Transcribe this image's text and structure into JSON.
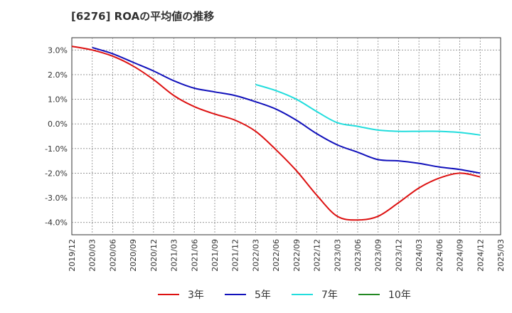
{
  "chart_data": {
    "type": "line",
    "title": "[6276]  ROAの平均値の推移",
    "xlabel": "",
    "ylabel": "",
    "ylim": [
      -4.5,
      3.5
    ],
    "yticks": [
      3.0,
      2.0,
      1.0,
      0.0,
      -1.0,
      -2.0,
      -3.0,
      -4.0
    ],
    "ytick_labels": [
      "3.0%",
      "2.0%",
      "1.0%",
      "0.0%",
      "-1.0%",
      "-2.0%",
      "-3.0%",
      "-4.0%"
    ],
    "x_categories": [
      "2019/12",
      "2020/03",
      "2020/06",
      "2020/09",
      "2020/12",
      "2021/03",
      "2021/06",
      "2021/09",
      "2021/12",
      "2022/03",
      "2022/06",
      "2022/09",
      "2022/12",
      "2023/03",
      "2023/06",
      "2023/09",
      "2023/12",
      "2024/03",
      "2024/06",
      "2024/09",
      "2024/12",
      "2025/03"
    ],
    "grid": true,
    "legend_position": "bottom",
    "series": [
      {
        "name": "3年",
        "color": "#dd1111",
        "start_index": 0,
        "values": [
          3.15,
          3.0,
          2.75,
          2.35,
          1.8,
          1.15,
          0.7,
          0.4,
          0.15,
          -0.3,
          -1.05,
          -1.9,
          -2.9,
          -3.75,
          -3.9,
          -3.75,
          -3.2,
          -2.6,
          -2.2,
          -2.0,
          -2.15
        ]
      },
      {
        "name": "5年",
        "color": "#1111bb",
        "start_index": 1,
        "values": [
          3.1,
          2.85,
          2.5,
          2.15,
          1.75,
          1.45,
          1.3,
          1.15,
          0.9,
          0.6,
          0.15,
          -0.4,
          -0.85,
          -1.15,
          -1.45,
          -1.5,
          -1.6,
          -1.75,
          -1.85,
          -2.0
        ]
      },
      {
        "name": "7年",
        "color": "#22dddd",
        "start_index": 9,
        "values": [
          1.6,
          1.35,
          1.0,
          0.5,
          0.05,
          -0.1,
          -0.25,
          -0.3,
          -0.3,
          -0.3,
          -0.35,
          -0.45
        ]
      },
      {
        "name": "10年",
        "color": "#228822",
        "start_index": 0,
        "values": []
      }
    ]
  }
}
